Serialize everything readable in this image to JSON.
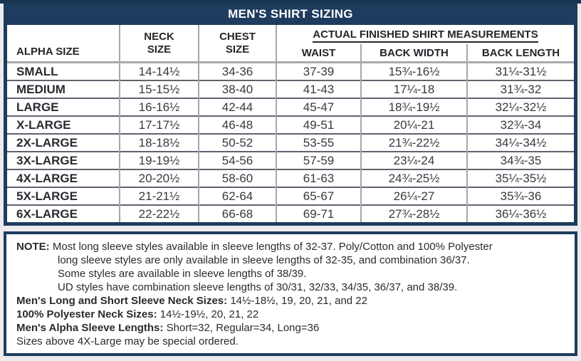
{
  "title": "MEN'S SHIRT SIZING",
  "colors": {
    "navy": "#1d3c5e",
    "header_underline_gray": "#a8aaad",
    "row_separator": "#5d646e",
    "column_separator": "#a5a7aa"
  },
  "table": {
    "columns": {
      "alpha": "ALPHA SIZE",
      "neck": "NECK\nSIZE",
      "chest": "CHEST\nSIZE",
      "group": "ACTUAL FINISHED SHIRT MEASUREMENTS",
      "waist": "WAIST",
      "back_width": "BACK WIDTH",
      "back_length": "BACK LENGTH"
    },
    "rows": [
      {
        "alpha": "SMALL",
        "neck": "14-14½",
        "chest": "34-36",
        "waist": "37-39",
        "back_width": "15¾-16½",
        "back_length": "31¼-31½"
      },
      {
        "alpha": "MEDIUM",
        "neck": "15-15½",
        "chest": "38-40",
        "waist": "41-43",
        "back_width": "17¼-18",
        "back_length": "31¾-32"
      },
      {
        "alpha": "LARGE",
        "neck": "16-16½",
        "chest": "42-44",
        "waist": "45-47",
        "back_width": "18¾-19½",
        "back_length": "32¼-32½"
      },
      {
        "alpha": "X-LARGE",
        "neck": "17-17½",
        "chest": "46-48",
        "waist": "49-51",
        "back_width": "20¼-21",
        "back_length": "32¾-34"
      },
      {
        "alpha": "2X-LARGE",
        "neck": "18-18½",
        "chest": "50-52",
        "waist": "53-55",
        "back_width": "21¾-22½",
        "back_length": "34¼-34½"
      },
      {
        "alpha": "3X-LARGE",
        "neck": "19-19½",
        "chest": "54-56",
        "waist": "57-59",
        "back_width": "23¼-24",
        "back_length": "34¾-35"
      },
      {
        "alpha": "4X-LARGE",
        "neck": "20-20½",
        "chest": "58-60",
        "waist": "61-63",
        "back_width": "24¾-25½",
        "back_length": "35¼-35½"
      },
      {
        "alpha": "5X-LARGE",
        "neck": "21-21½",
        "chest": "62-64",
        "waist": "65-67",
        "back_width": "26¼-27",
        "back_length": "35¾-36"
      },
      {
        "alpha": "6X-LARGE",
        "neck": "22-22½",
        "chest": "66-68",
        "waist": "69-71",
        "back_width": "27¾-28½",
        "back_length": "36¼-36½"
      }
    ]
  },
  "notes": {
    "note": {
      "label": "NOTE:",
      "line1": "Most long sleeve styles available in sleeve lengths of 32-37. Poly/Cotton and 100% Polyester",
      "line2": "long sleeve styles are only available in sleeve lengths of 32-35, and combination 36/37.",
      "line3": "Some styles are available in sleeve lengths of 38/39.",
      "line4": "UD styles have combination sleeve lengths of 30/31, 32/33, 34/35, 36/37, and 38/39."
    },
    "specs": [
      {
        "label": "Men's Long and Short Sleeve Neck Sizes:",
        "value": "14½-18½, 19, 20, 21, and 22"
      },
      {
        "label": "100% Polyester Neck Sizes:",
        "value": "14½-19½, 20, 21, 22"
      },
      {
        "label": "Men's Alpha Sleeve Lengths:",
        "value": "Short=32, Regular=34, Long=36"
      }
    ],
    "footer": "Sizes above 4X-Large may be special ordered."
  }
}
